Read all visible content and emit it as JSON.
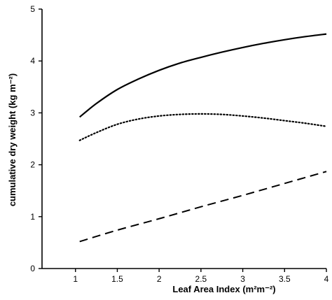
{
  "chart_data": {
    "type": "line",
    "title": "",
    "xlabel": "Leaf Area Index (m²m⁻²)",
    "ylabel": "cumulative dry weight (kg m⁻²)",
    "xlim": [
      0.6,
      4
    ],
    "ylim": [
      0,
      5
    ],
    "x_ticks": [
      1,
      1.5,
      2,
      2.5,
      3,
      3.5,
      4
    ],
    "x_tick_labels": [
      "1",
      "1.5",
      "2",
      "2.5",
      "3",
      "3.5",
      "4"
    ],
    "y_ticks": [
      0,
      1,
      2,
      3,
      4,
      5
    ],
    "y_tick_labels": [
      "0",
      "1",
      "2",
      "3",
      "4",
      "5"
    ],
    "grid": false,
    "legend": "none",
    "series": [
      {
        "style": "solid",
        "color": "#000000",
        "x": [
          1.05,
          1.25,
          1.5,
          1.75,
          2,
          2.25,
          2.5,
          2.75,
          3,
          3.25,
          3.5,
          3.75,
          4
        ],
        "values": [
          2.92,
          3.18,
          3.45,
          3.65,
          3.82,
          3.96,
          4.07,
          4.17,
          4.26,
          4.34,
          4.41,
          4.47,
          4.52
        ]
      },
      {
        "style": "dotted",
        "color": "#000000",
        "x": [
          1.05,
          1.25,
          1.5,
          1.75,
          2,
          2.25,
          2.5,
          2.75,
          3,
          3.25,
          3.5,
          3.75,
          4
        ],
        "values": [
          2.47,
          2.62,
          2.78,
          2.88,
          2.94,
          2.97,
          2.98,
          2.97,
          2.94,
          2.9,
          2.85,
          2.8,
          2.74
        ]
      },
      {
        "style": "dashed",
        "color": "#000000",
        "x": [
          1.05,
          1.5,
          2,
          2.5,
          3,
          3.5,
          4
        ],
        "values": [
          0.52,
          0.74,
          0.96,
          1.19,
          1.41,
          1.64,
          1.87
        ]
      }
    ]
  }
}
